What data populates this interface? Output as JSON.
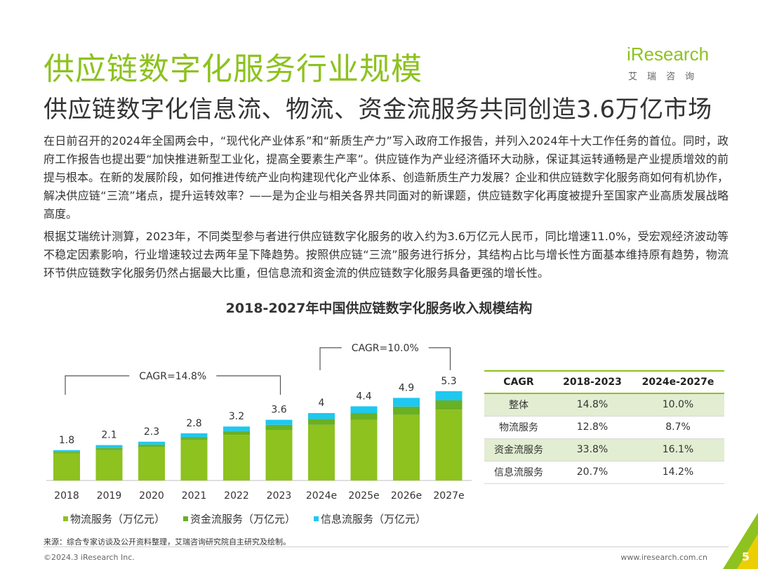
{
  "header": {
    "title": "供应链数字化服务行业规模",
    "subtitle": "供应链数字化信息流、物流、资金流服务共同创造3.6万亿市场"
  },
  "logo": {
    "wordmark": "iResearch",
    "chinese": "艾瑞咨询"
  },
  "body": {
    "paragraph1": "在日前召开的2024年全国两会中，“现代化产业体系”和“新质生产力”写入政府工作报告，并列入2024年十大工作任务的首位。同时，政府工作报告也提出要“加快推进新型工业化，提高全要素生产率”。供应链作为产业经济循环大动脉，保证其运转通畅是产业提质增效的前提与根本。在新的发展阶段，如何推进传统产业向构建现代化产业体系、创造新质生产力发展？企业和供应链数字化服务商如何有机协作，解决供应链“三流”堵点，提升运转效率？——是为企业与相关各界共同面对的新课题，供应链数字化再度被提升至国家产业高质发展战略高度。",
    "paragraph2": "根据艾瑞统计测算，2023年，不同类型参与者进行供应链数字化服务的收入约为3.6万亿元人民币，同比增速11.0%，受宏观经济波动等不稳定因素影响，行业增速较过去两年呈下降趋势。按照供应链“三流”服务进行拆分，其结构占比与增长性方面基本维持原有趋势，物流环节供应链数字化服务仍然占据最大比重，但信息流和资金流的供应链数字化服务具备更强的增长性。"
  },
  "chart_data": {
    "type": "bar",
    "stacked": true,
    "title": "2018-2027年中国供应链数字化服务收入规模结构",
    "categories": [
      "2018",
      "2019",
      "2020",
      "2021",
      "2022",
      "2023",
      "2024e",
      "2025e",
      "2026e",
      "2027e"
    ],
    "totals": [
      1.8,
      2.1,
      2.3,
      2.8,
      3.2,
      3.6,
      4.0,
      4.4,
      4.9,
      5.3
    ],
    "series": [
      {
        "name": "物流服务（万亿元）",
        "color": "#8dc21f",
        "values": [
          1.6,
          1.8,
          2.0,
          2.4,
          2.7,
          3.0,
          3.3,
          3.6,
          3.9,
          4.2
        ]
      },
      {
        "name": "资金流服务（万亿元）",
        "color": "#6ab023",
        "values": [
          0.1,
          0.12,
          0.13,
          0.18,
          0.23,
          0.3,
          0.35,
          0.4,
          0.48,
          0.55
        ]
      },
      {
        "name": "信息流服务（万亿元）",
        "color": "#1ec8f0",
        "values": [
          0.1,
          0.18,
          0.17,
          0.22,
          0.27,
          0.3,
          0.35,
          0.4,
          0.52,
          0.55
        ]
      }
    ],
    "ylim": [
      0,
      6
    ],
    "annotations": [
      {
        "label": "CAGR=14.8%",
        "from": "2018",
        "to": "2023"
      },
      {
        "label": "CAGR=10.0%",
        "from": "2024e",
        "to": "2027e"
      }
    ]
  },
  "cagr_table": {
    "headers": [
      "CAGR",
      "2018-2023",
      "2024e-2027e"
    ],
    "rows": [
      [
        "整体",
        "14.8%",
        "10.0%"
      ],
      [
        "物流服务",
        "12.8%",
        "8.7%"
      ],
      [
        "资金流服务",
        "33.8%",
        "16.1%"
      ],
      [
        "信息流服务",
        "20.7%",
        "14.2%"
      ]
    ]
  },
  "footer": {
    "source": "来源：综合专家访谈及公开资料整理，艾瑞咨询研究院自主研究及绘制。",
    "copyright": "©2024.3 iResearch Inc.",
    "website": "www.iresearch.com.cn",
    "page_number": "5"
  },
  "colors": {
    "brand_green": "#8dc21f",
    "dark_green": "#6ab023",
    "cyan": "#1ec8f0",
    "table_shade": "#e2edd2"
  }
}
